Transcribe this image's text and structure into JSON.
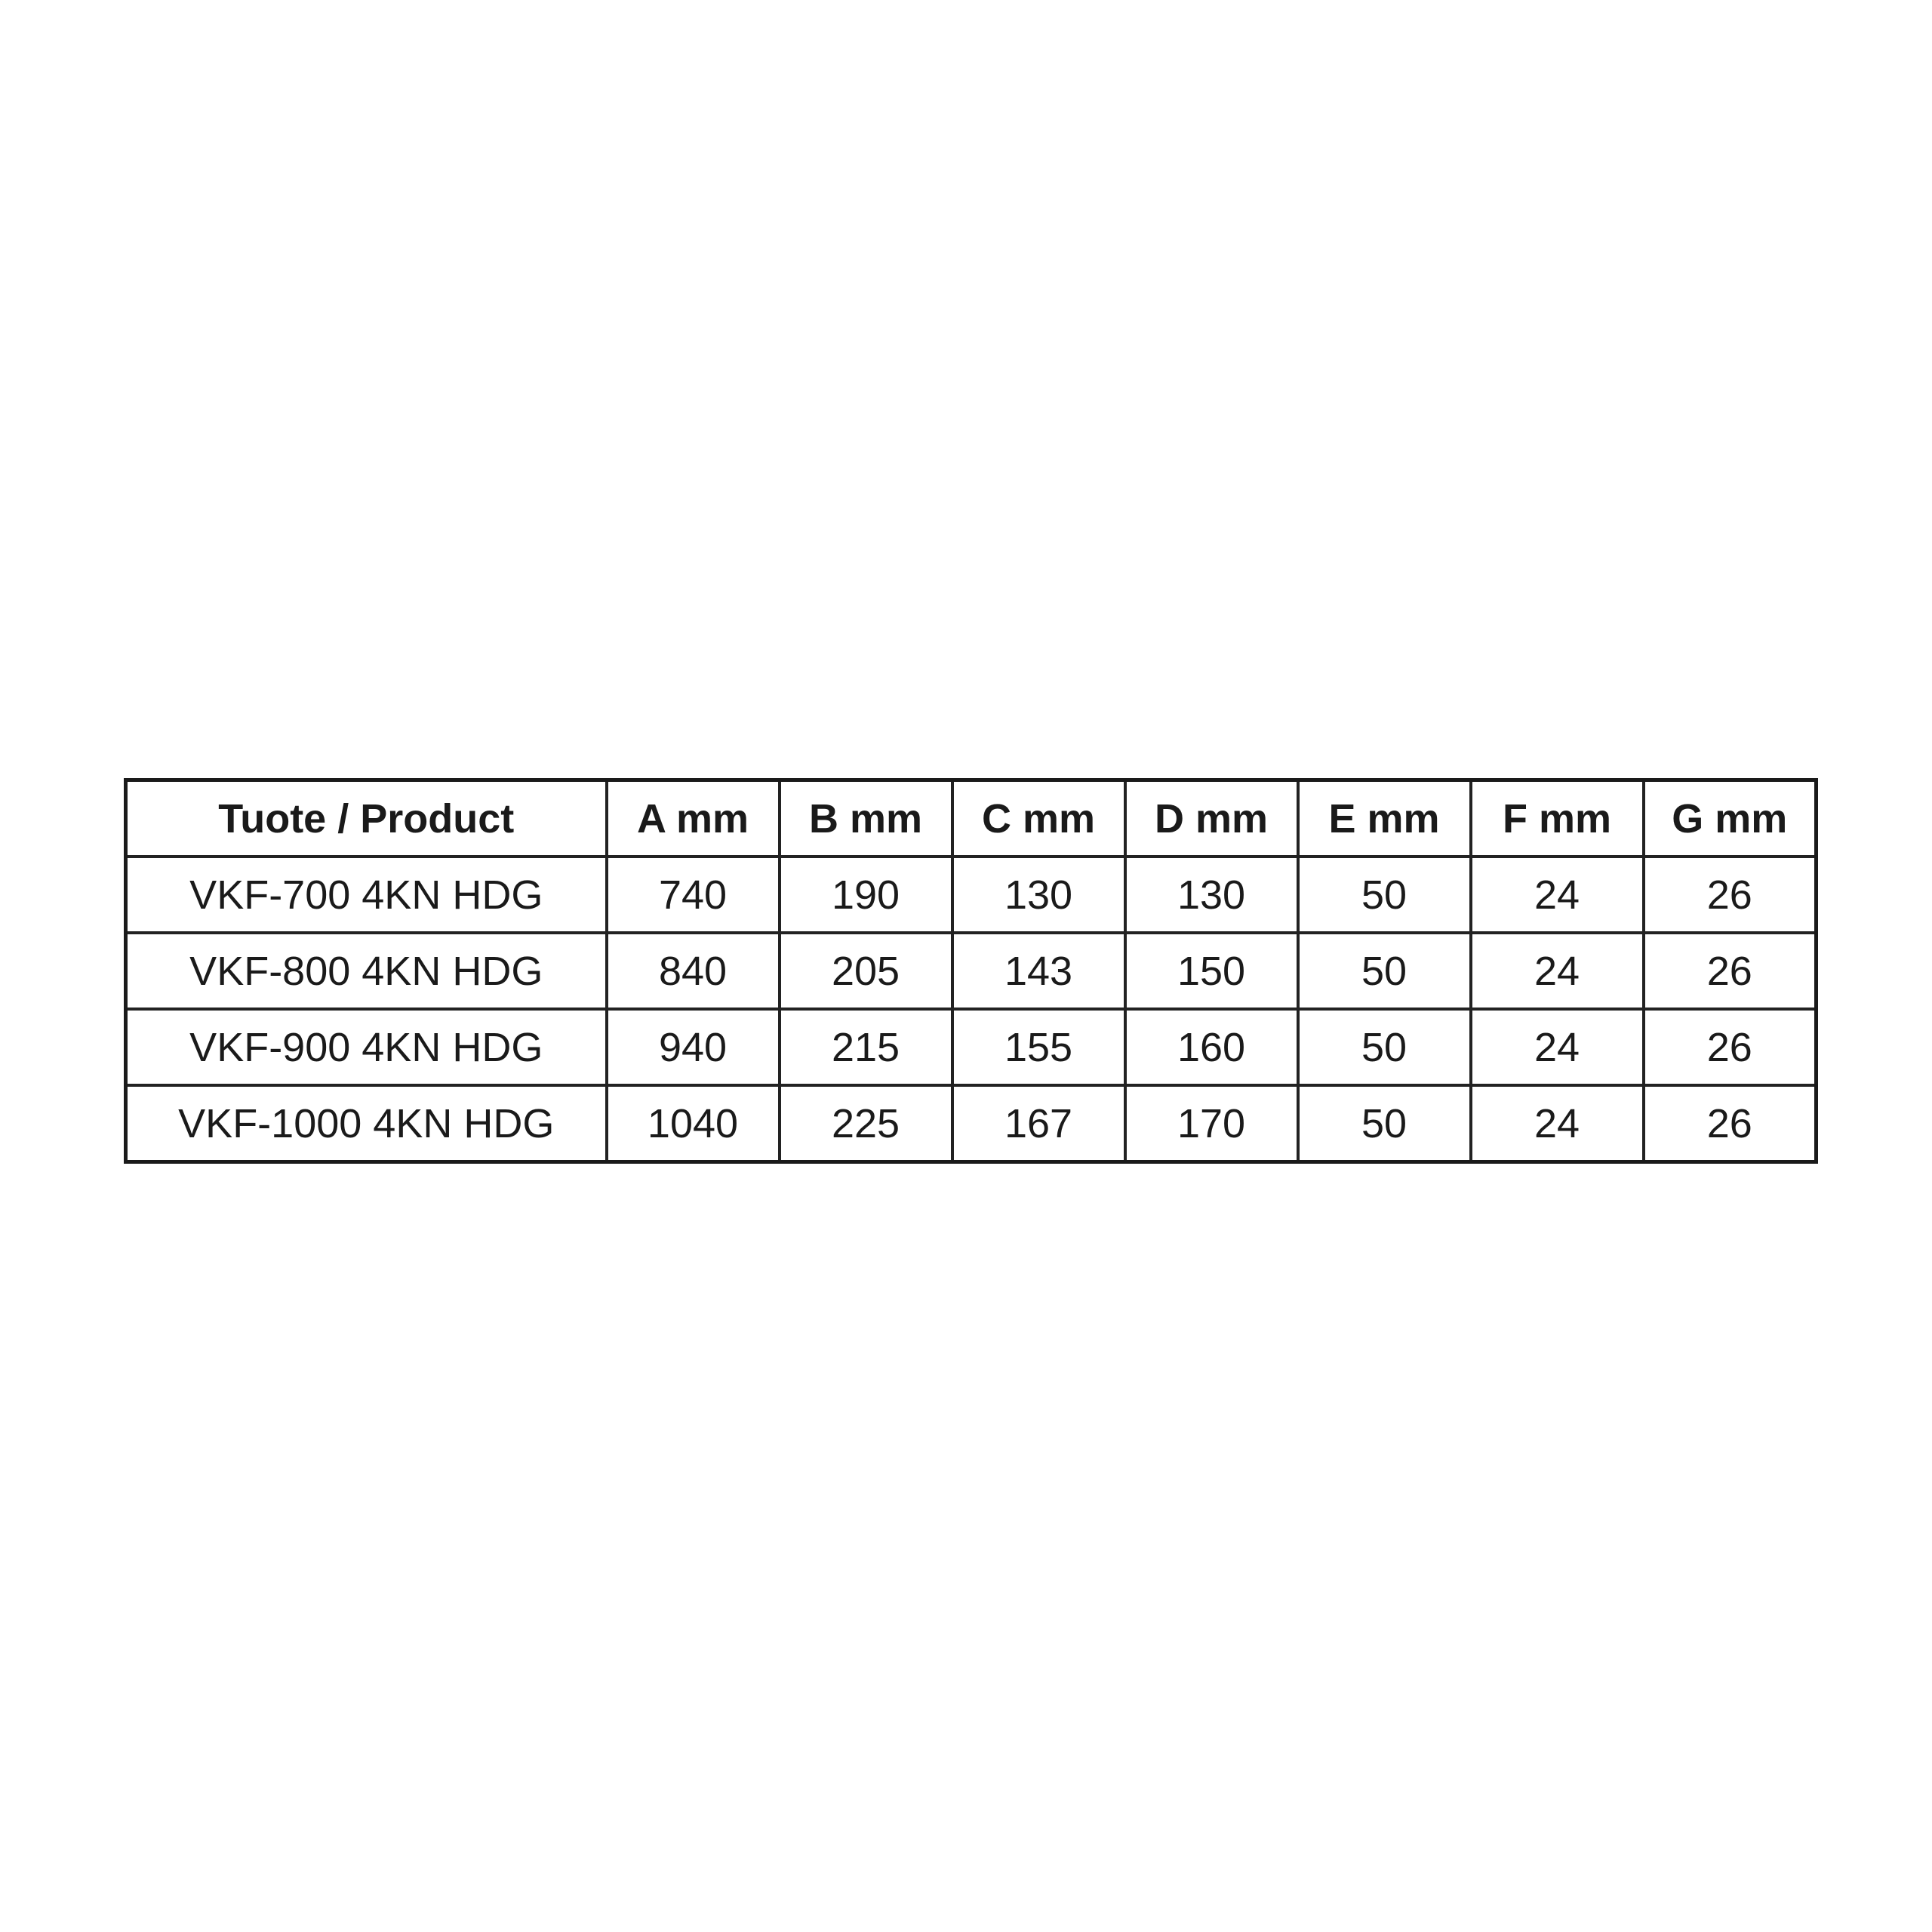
{
  "table": {
    "headers": [
      "Tuote / Product",
      "A mm",
      "B mm",
      "C mm",
      "D mm",
      "E mm",
      "F mm",
      "G mm"
    ],
    "rows": [
      [
        "VKF-700 4KN HDG",
        "740",
        "190",
        "130",
        "130",
        "50",
        "24",
        "26"
      ],
      [
        "VKF-800 4KN HDG",
        "840",
        "205",
        "143",
        "150",
        "50",
        "24",
        "26"
      ],
      [
        "VKF-900 4KN HDG",
        "940",
        "215",
        "155",
        "160",
        "50",
        "24",
        "26"
      ],
      [
        "VKF-1000 4KN HDG",
        "1040",
        "225",
        "167",
        "170",
        "50",
        "24",
        "26"
      ]
    ]
  }
}
